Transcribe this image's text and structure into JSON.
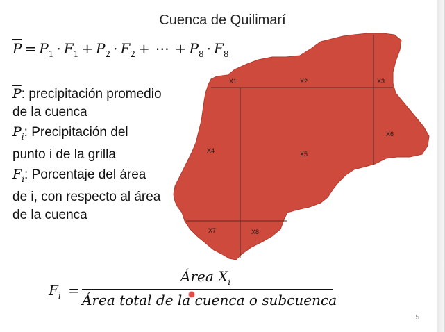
{
  "slide": {
    "title": "Cuenca de Quilimarí",
    "formula": {
      "lhs": "P",
      "equals": "=",
      "terms": [
        {
          "p": "P",
          "p_sub": "1",
          "dot": "·",
          "f": "F",
          "f_sub": "1"
        },
        {
          "p": "P",
          "p_sub": "2",
          "dot": "·",
          "f": "F",
          "f_sub": "2"
        },
        {
          "p": "P",
          "p_sub": "8",
          "dot": "·",
          "f": "F",
          "f_sub": "8"
        }
      ],
      "plus": "+",
      "ellipsis": "⋯"
    },
    "legend": {
      "pbar_sym": "P",
      "pbar_text": ": precipitación promedio de la cuenca",
      "pi_sym": "P",
      "pi_sub": "i",
      "pi_text": ": Precipitación del punto i de la grilla",
      "fi_sym": "F",
      "fi_sub": "i",
      "fi_text": ": Porcentaje del área de i, con respecto al área de la cuenca"
    },
    "map_labels": {
      "x1": "X1",
      "x2": "X2",
      "x3": "X3",
      "x4": "X4",
      "x5": "X5",
      "x6": "X6",
      "x7": "X7",
      "x8": "X8"
    },
    "fraction": {
      "lhs": "F",
      "lhs_sub": "i",
      "equals": "=",
      "numerator": "Área X",
      "numerator_sub": "i",
      "denominator": "Área total de la cuenca o subcuenca"
    },
    "page_number": "5",
    "colors": {
      "basin_fill": "#cd4a3c",
      "grid_line": "#5a2a22"
    }
  }
}
